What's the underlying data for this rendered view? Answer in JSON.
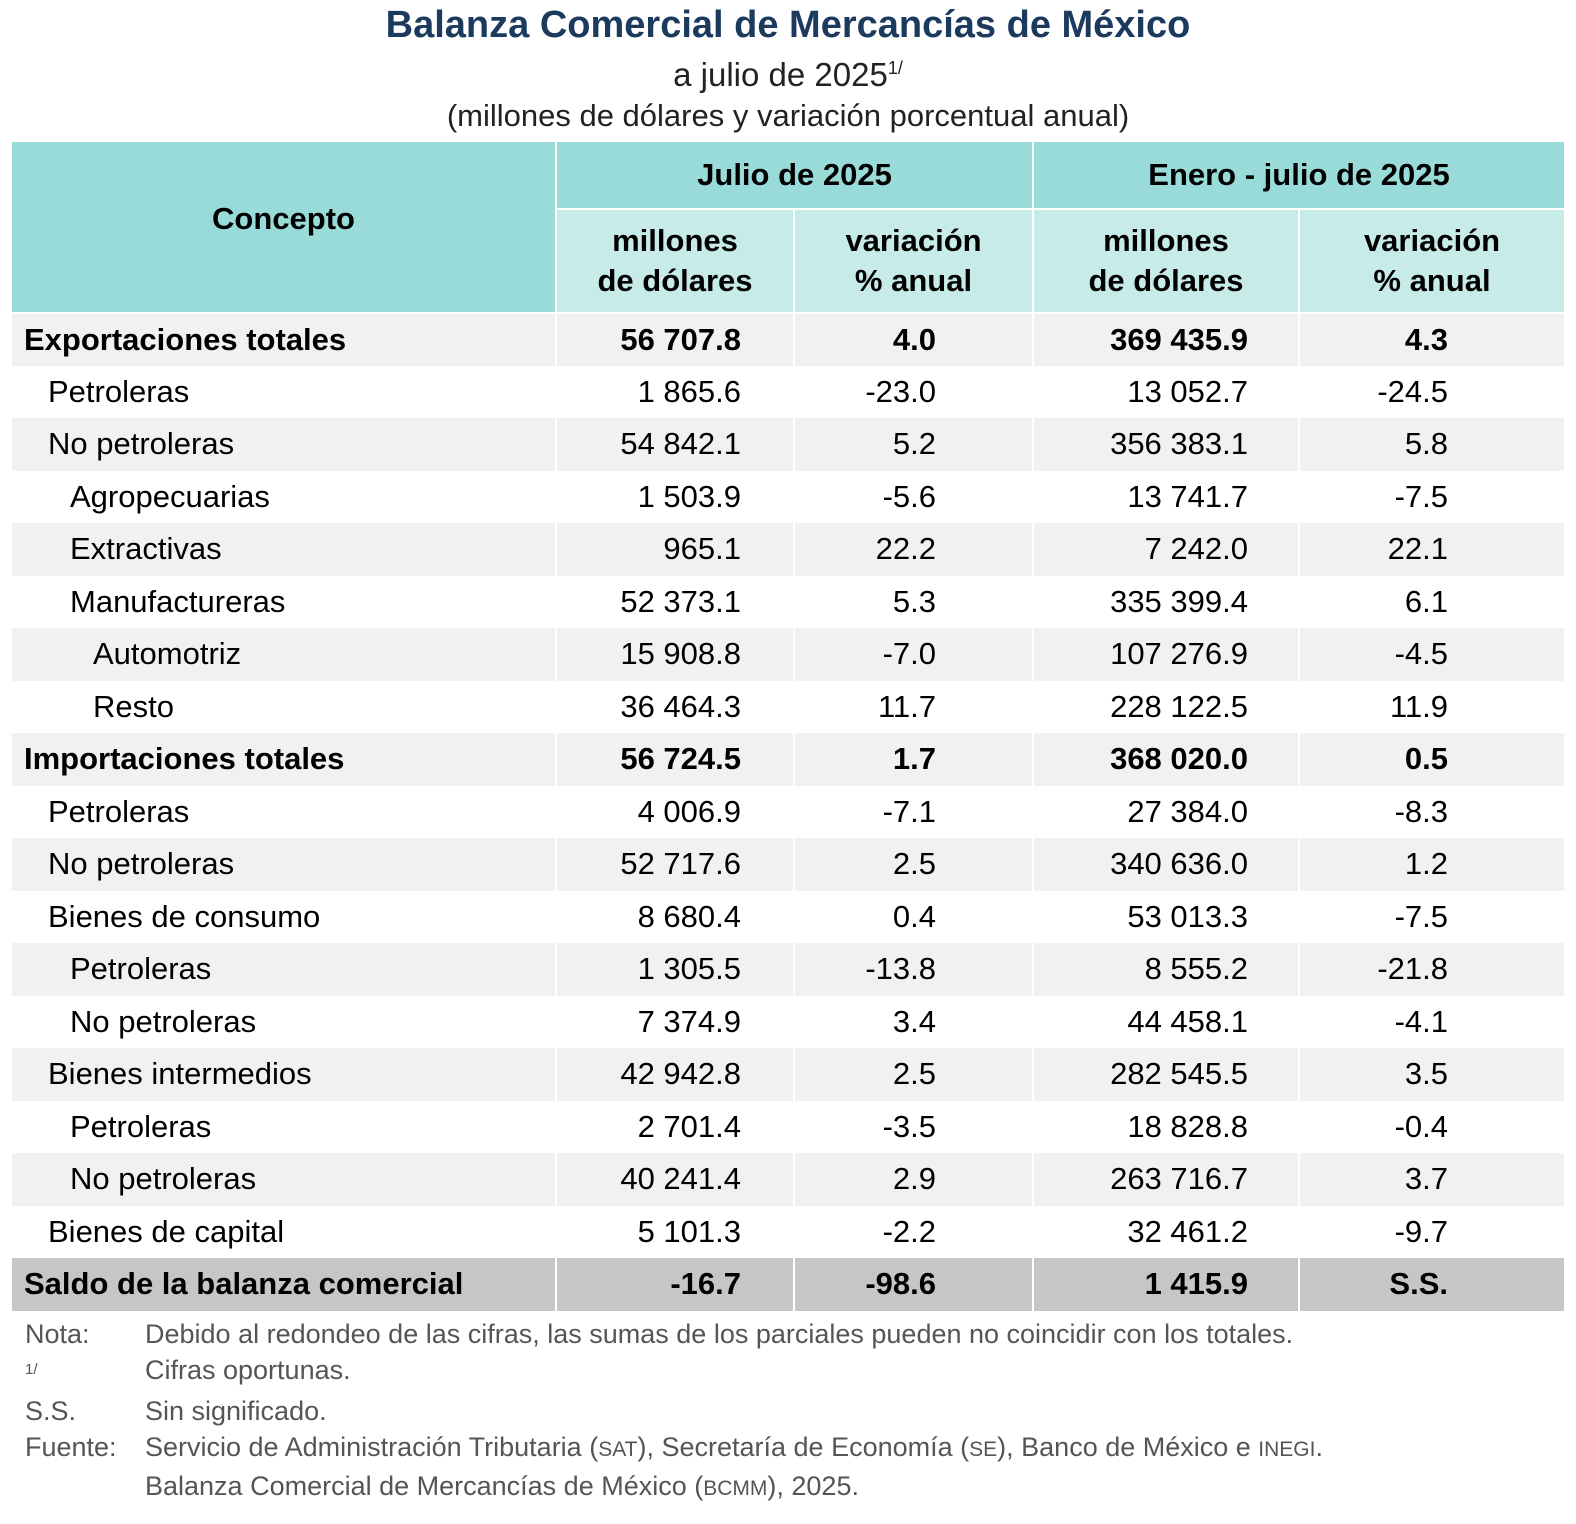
{
  "header": {
    "title": "Balanza Comercial de Mercancías de México",
    "subtitle": "a julio de 2025",
    "subtitle_note": "1/",
    "units": "(millones de dólares y variación porcentual anual)"
  },
  "table": {
    "concept_header": "Concepto",
    "group1": "Julio de 2025",
    "group2": "Enero - julio de 2025",
    "col_millions": [
      "millones",
      "de dólares"
    ],
    "col_variation": [
      "variación",
      "% anual"
    ],
    "rows": [
      {
        "label": "Exportaciones totales",
        "level": 0,
        "bold": true,
        "values": [
          "56 707.8",
          "4.0",
          "369 435.9",
          "4.3"
        ]
      },
      {
        "label": "Petroleras",
        "level": 1,
        "values": [
          "1 865.6",
          "-23.0",
          "13 052.7",
          "-24.5"
        ]
      },
      {
        "label": "No petroleras",
        "level": 1,
        "values": [
          "54 842.1",
          "5.2",
          "356 383.1",
          "5.8"
        ]
      },
      {
        "label": "Agropecuarias",
        "level": 2,
        "values": [
          "1 503.9",
          "-5.6",
          "13 741.7",
          "-7.5"
        ]
      },
      {
        "label": "Extractivas",
        "level": 2,
        "values": [
          "965.1",
          "22.2",
          "7 242.0",
          "22.1"
        ]
      },
      {
        "label": "Manufactureras",
        "level": 2,
        "values": [
          "52 373.1",
          "5.3",
          "335 399.4",
          "6.1"
        ]
      },
      {
        "label": "Automotriz",
        "level": 3,
        "values": [
          "15 908.8",
          "-7.0",
          "107 276.9",
          "-4.5"
        ]
      },
      {
        "label": "Resto",
        "level": 3,
        "values": [
          "36 464.3",
          "11.7",
          "228 122.5",
          "11.9"
        ]
      },
      {
        "label": "Importaciones totales",
        "level": 0,
        "bold": true,
        "values": [
          "56 724.5",
          "1.7",
          "368 020.0",
          "0.5"
        ]
      },
      {
        "label": "Petroleras",
        "level": 1,
        "values": [
          "4 006.9",
          "-7.1",
          "27 384.0",
          "-8.3"
        ]
      },
      {
        "label": "No petroleras",
        "level": 1,
        "values": [
          "52 717.6",
          "2.5",
          "340 636.0",
          "1.2"
        ]
      },
      {
        "label": "Bienes de consumo",
        "level": 1,
        "values": [
          "8 680.4",
          "0.4",
          "53 013.3",
          "-7.5"
        ]
      },
      {
        "label": "Petroleras",
        "level": 2,
        "values": [
          "1 305.5",
          "-13.8",
          "8 555.2",
          "-21.8"
        ]
      },
      {
        "label": "No petroleras",
        "level": 2,
        "values": [
          "7 374.9",
          "3.4",
          "44 458.1",
          "-4.1"
        ]
      },
      {
        "label": "Bienes intermedios",
        "level": 1,
        "values": [
          "42 942.8",
          "2.5",
          "282 545.5",
          "3.5"
        ]
      },
      {
        "label": "Petroleras",
        "level": 2,
        "values": [
          "2 701.4",
          "-3.5",
          "18 828.8",
          "-0.4"
        ]
      },
      {
        "label": "No petroleras",
        "level": 2,
        "values": [
          "40 241.4",
          "2.9",
          "263 716.7",
          "3.7"
        ]
      },
      {
        "label": "Bienes de capital",
        "level": 1,
        "values": [
          "5 101.3",
          "-2.2",
          "32 461.2",
          "-9.7"
        ]
      }
    ],
    "saldo": {
      "label": "Saldo de la balanza comercial",
      "values": [
        "-16.7",
        "-98.6",
        "1 415.9",
        "S.S."
      ]
    }
  },
  "notes": [
    {
      "key": "Nota:",
      "text": "Debido al redondeo de las cifras, las sumas de los parciales pueden no coincidir con los totales."
    },
    {
      "key": "1/",
      "text": "Cifras oportunas."
    },
    {
      "key": "S.S.",
      "text": "Sin significado."
    }
  ],
  "source": {
    "key": "Fuente:",
    "parts": [
      "Servicio de Administración Tributaria (",
      "SAT",
      "), Secretaría de Economía (",
      "SE",
      "), Banco de México e ",
      "INEGI",
      "."
    ],
    "line2": [
      "Balanza Comercial de Mercancías de México (",
      "BCMM",
      "), 2025."
    ]
  },
  "colors": {
    "title": "#1b3a5e",
    "header_dark": "#98dbd8",
    "header_light": "#c7ebe8",
    "row_alt": "#f1f1f1",
    "saldo_bg": "#c6c6c6"
  }
}
